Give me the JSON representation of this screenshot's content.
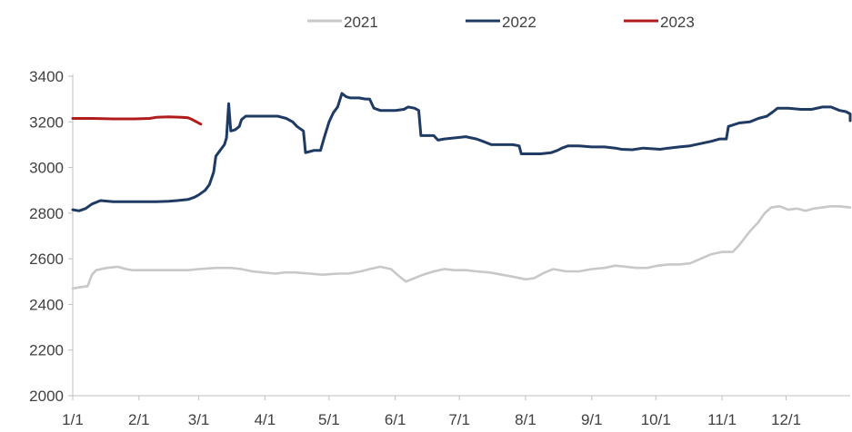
{
  "chart_data": {
    "type": "line",
    "title": "",
    "xlabel": "",
    "ylabel": "",
    "ylim": [
      2000,
      3400
    ],
    "yticks": [
      2000,
      2200,
      2400,
      2600,
      2800,
      3000,
      3200,
      3400
    ],
    "xticks": [
      "1/1",
      "2/1",
      "3/1",
      "4/1",
      "5/1",
      "6/1",
      "7/1",
      "8/1",
      "9/1",
      "10/1",
      "11/1",
      "12/1"
    ],
    "xlim_days": [
      1,
      365
    ],
    "grid": false,
    "legend_position": "top",
    "series": [
      {
        "name": "2021",
        "color": "#c8c8c8",
        "points": [
          [
            1,
            2470
          ],
          [
            4,
            2475
          ],
          [
            8,
            2480
          ],
          [
            10,
            2530
          ],
          [
            12,
            2550
          ],
          [
            17,
            2560
          ],
          [
            22,
            2565
          ],
          [
            26,
            2555
          ],
          [
            29,
            2550
          ],
          [
            33,
            2550
          ],
          [
            40,
            2550
          ],
          [
            48,
            2550
          ],
          [
            55,
            2550
          ],
          [
            60,
            2555
          ],
          [
            68,
            2560
          ],
          [
            75,
            2560
          ],
          [
            80,
            2555
          ],
          [
            85,
            2545
          ],
          [
            90,
            2540
          ],
          [
            96,
            2535
          ],
          [
            100,
            2540
          ],
          [
            105,
            2540
          ],
          [
            112,
            2535
          ],
          [
            118,
            2530
          ],
          [
            125,
            2535
          ],
          [
            130,
            2535
          ],
          [
            136,
            2545
          ],
          [
            140,
            2555
          ],
          [
            145,
            2565
          ],
          [
            150,
            2555
          ],
          [
            153,
            2530
          ],
          [
            157,
            2500
          ],
          [
            161,
            2515
          ],
          [
            165,
            2530
          ],
          [
            170,
            2545
          ],
          [
            175,
            2555
          ],
          [
            180,
            2550
          ],
          [
            185,
            2550
          ],
          [
            190,
            2545
          ],
          [
            196,
            2540
          ],
          [
            202,
            2530
          ],
          [
            208,
            2520
          ],
          [
            213,
            2510
          ],
          [
            217,
            2515
          ],
          [
            222,
            2540
          ],
          [
            226,
            2555
          ],
          [
            232,
            2545
          ],
          [
            238,
            2545
          ],
          [
            244,
            2555
          ],
          [
            250,
            2560
          ],
          [
            255,
            2570
          ],
          [
            260,
            2565
          ],
          [
            265,
            2560
          ],
          [
            270,
            2560
          ],
          [
            275,
            2570
          ],
          [
            280,
            2575
          ],
          [
            285,
            2575
          ],
          [
            290,
            2580
          ],
          [
            295,
            2600
          ],
          [
            300,
            2620
          ],
          [
            305,
            2630
          ],
          [
            310,
            2630
          ],
          [
            313,
            2660
          ],
          [
            318,
            2720
          ],
          [
            322,
            2760
          ],
          [
            325,
            2800
          ],
          [
            328,
            2825
          ],
          [
            332,
            2830
          ],
          [
            336,
            2815
          ],
          [
            340,
            2820
          ],
          [
            344,
            2810
          ],
          [
            348,
            2820
          ],
          [
            352,
            2825
          ],
          [
            356,
            2830
          ],
          [
            360,
            2830
          ],
          [
            365,
            2825
          ]
        ]
      },
      {
        "name": "2022",
        "color": "#1f3b63",
        "points": [
          [
            1,
            2815
          ],
          [
            4,
            2810
          ],
          [
            7,
            2820
          ],
          [
            10,
            2840
          ],
          [
            14,
            2855
          ],
          [
            20,
            2850
          ],
          [
            30,
            2850
          ],
          [
            40,
            2850
          ],
          [
            46,
            2852
          ],
          [
            50,
            2855
          ],
          [
            55,
            2860
          ],
          [
            58,
            2870
          ],
          [
            60,
            2880
          ],
          [
            63,
            2900
          ],
          [
            65,
            2925
          ],
          [
            67,
            2980
          ],
          [
            68,
            3050
          ],
          [
            70,
            3075
          ],
          [
            72,
            3100
          ],
          [
            73,
            3130
          ],
          [
            74,
            3280
          ],
          [
            75,
            3160
          ],
          [
            77,
            3165
          ],
          [
            79,
            3180
          ],
          [
            80,
            3210
          ],
          [
            82,
            3225
          ],
          [
            86,
            3225
          ],
          [
            92,
            3225
          ],
          [
            97,
            3225
          ],
          [
            101,
            3215
          ],
          [
            104,
            3200
          ],
          [
            106,
            3180
          ],
          [
            109,
            3160
          ],
          [
            110,
            3065
          ],
          [
            112,
            3070
          ],
          [
            114,
            3075
          ],
          [
            117,
            3075
          ],
          [
            119,
            3140
          ],
          [
            121,
            3200
          ],
          [
            123,
            3240
          ],
          [
            125,
            3265
          ],
          [
            127,
            3325
          ],
          [
            129,
            3310
          ],
          [
            131,
            3305
          ],
          [
            135,
            3305
          ],
          [
            138,
            3300
          ],
          [
            140,
            3300
          ],
          [
            142,
            3260
          ],
          [
            145,
            3250
          ],
          [
            149,
            3250
          ],
          [
            152,
            3250
          ],
          [
            156,
            3255
          ],
          [
            158,
            3265
          ],
          [
            161,
            3260
          ],
          [
            163,
            3250
          ],
          [
            164,
            3140
          ],
          [
            170,
            3140
          ],
          [
            172,
            3120
          ],
          [
            175,
            3125
          ],
          [
            180,
            3130
          ],
          [
            185,
            3135
          ],
          [
            190,
            3125
          ],
          [
            193,
            3115
          ],
          [
            197,
            3100
          ],
          [
            202,
            3100
          ],
          [
            207,
            3100
          ],
          [
            210,
            3095
          ],
          [
            211,
            3060
          ],
          [
            216,
            3060
          ],
          [
            220,
            3060
          ],
          [
            225,
            3065
          ],
          [
            228,
            3075
          ],
          [
            230,
            3085
          ],
          [
            233,
            3095
          ],
          [
            238,
            3095
          ],
          [
            244,
            3090
          ],
          [
            250,
            3090
          ],
          [
            255,
            3085
          ],
          [
            258,
            3080
          ],
          [
            263,
            3078
          ],
          [
            268,
            3085
          ],
          [
            273,
            3082
          ],
          [
            276,
            3080
          ],
          [
            280,
            3085
          ],
          [
            285,
            3090
          ],
          [
            290,
            3095
          ],
          [
            295,
            3105
          ],
          [
            300,
            3115
          ],
          [
            304,
            3125
          ],
          [
            307,
            3125
          ],
          [
            308,
            3180
          ],
          [
            313,
            3195
          ],
          [
            318,
            3200
          ],
          [
            322,
            3215
          ],
          [
            326,
            3225
          ],
          [
            329,
            3245
          ],
          [
            331,
            3260
          ],
          [
            336,
            3260
          ],
          [
            342,
            3255
          ],
          [
            347,
            3255
          ],
          [
            352,
            3265
          ],
          [
            356,
            3265
          ],
          [
            360,
            3250
          ],
          [
            363,
            3245
          ],
          [
            367,
            3235
          ],
          [
            372,
            3230
          ],
          [
            375,
            3215
          ],
          [
            378,
            3210
          ],
          [
            381,
            3205
          ],
          [
            384,
            3220
          ]
        ]
      },
      {
        "name": "2023",
        "color": "#b01c1c",
        "points": [
          [
            1,
            3215
          ],
          [
            10,
            3215
          ],
          [
            20,
            3213
          ],
          [
            30,
            3213
          ],
          [
            37,
            3215
          ],
          [
            40,
            3220
          ],
          [
            46,
            3222
          ],
          [
            52,
            3220
          ],
          [
            55,
            3218
          ],
          [
            57,
            3210
          ],
          [
            59,
            3200
          ],
          [
            61,
            3190
          ]
        ]
      }
    ]
  }
}
